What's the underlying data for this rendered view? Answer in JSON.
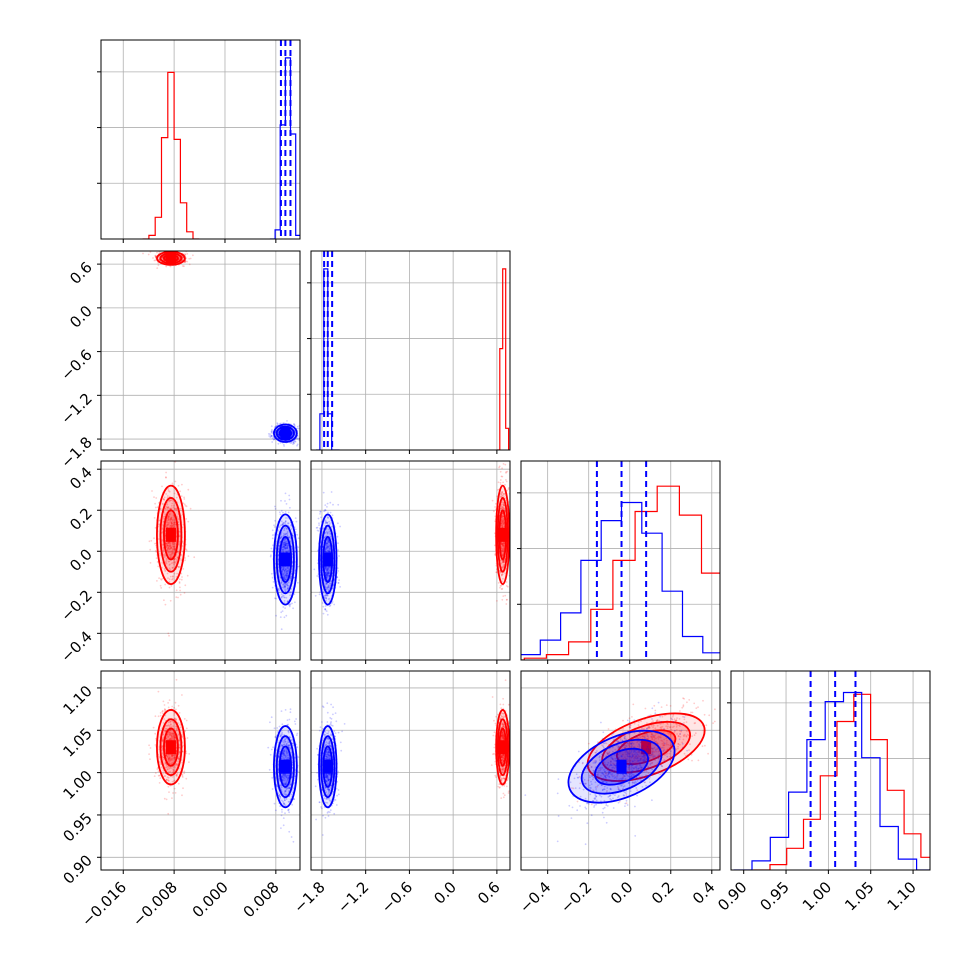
{
  "figure": {
    "background": "#ffffff",
    "grid": true,
    "colors": {
      "red": "#ff0000",
      "blue": "#0000ff",
      "grid": "#b0b0b0",
      "axes": "#000000"
    }
  },
  "chart_data": {
    "type": "corner",
    "parameters": 4,
    "ranges": [
      [
        -0.0195,
        0.0118
      ],
      [
        -1.95,
        0.78
      ],
      [
        -0.53,
        0.44
      ],
      [
        0.885,
        1.12
      ]
    ],
    "x_ticks": [
      [
        "−0.016",
        "−0.008",
        "0.000",
        "0.008"
      ],
      [
        "−1.8",
        "−1.2",
        "−0.6",
        "0.0",
        "0.6"
      ],
      [
        "−0.4",
        "−0.2",
        "0.0",
        "0.2",
        "0.4"
      ],
      [
        "0.90",
        "0.95",
        "1.00",
        "1.05",
        "1.10"
      ]
    ],
    "y_ticks": [
      [],
      [
        "0.6",
        "0.0",
        "−0.6",
        "−1.2",
        "−1.8"
      ],
      [
        "0.4",
        "0.2",
        "0.0",
        "−0.2",
        "−0.4"
      ],
      [
        "1.10",
        "1.05",
        "1.00",
        "0.95",
        "0.90"
      ]
    ],
    "series": [
      {
        "color": "#ff0000",
        "means": [
          -0.0085,
          0.68,
          0.08,
          1.03
        ],
        "sigmas": [
          0.0011,
          0.045,
          0.12,
          0.022
        ],
        "correlations": [
          [
            2,
            3,
            0.55
          ]
        ],
        "histograms": [
          [
            0.0,
            0.02,
            0.12,
            0.56,
            0.92,
            0.55,
            0.2,
            0.04,
            0.0
          ],
          [
            0.0,
            0.56,
            1.0,
            0.12
          ],
          [
            0.0,
            0.01,
            0.03,
            0.1,
            0.28,
            0.55,
            0.82,
            0.96,
            0.8,
            0.48,
            0.2,
            0.06,
            0.01
          ],
          [
            0.0,
            0.03,
            0.12,
            0.28,
            0.52,
            0.82,
            0.97,
            0.72,
            0.44,
            0.2,
            0.07,
            0.0
          ]
        ]
      },
      {
        "color": "#0000ff",
        "means": [
          0.0095,
          -1.72,
          -0.04,
          1.007
        ],
        "sigmas": [
          0.0009,
          0.06,
          0.11,
          0.024
        ],
        "correlations": [
          [
            2,
            3,
            0.55
          ]
        ],
        "quantiles": [
          [
            0.0088,
            0.0095,
            0.0103
          ],
          [
            -1.77,
            -1.72,
            -1.66
          ],
          [
            -0.16,
            -0.04,
            0.08
          ],
          [
            0.979,
            1.008,
            1.032
          ]
        ],
        "histograms": [
          [
            0.0,
            0.05,
            0.63,
            1.0,
            0.58,
            0.02
          ],
          [
            0.0,
            0.2,
            1.0,
            0.2,
            0.0,
            0.0
          ],
          [
            0.0,
            0.03,
            0.11,
            0.26,
            0.55,
            0.77,
            0.87,
            0.7,
            0.38,
            0.13,
            0.04,
            0.0
          ],
          [
            0.0,
            0.05,
            0.18,
            0.43,
            0.72,
            0.93,
            0.98,
            0.62,
            0.24,
            0.06,
            0.0
          ]
        ]
      }
    ]
  }
}
